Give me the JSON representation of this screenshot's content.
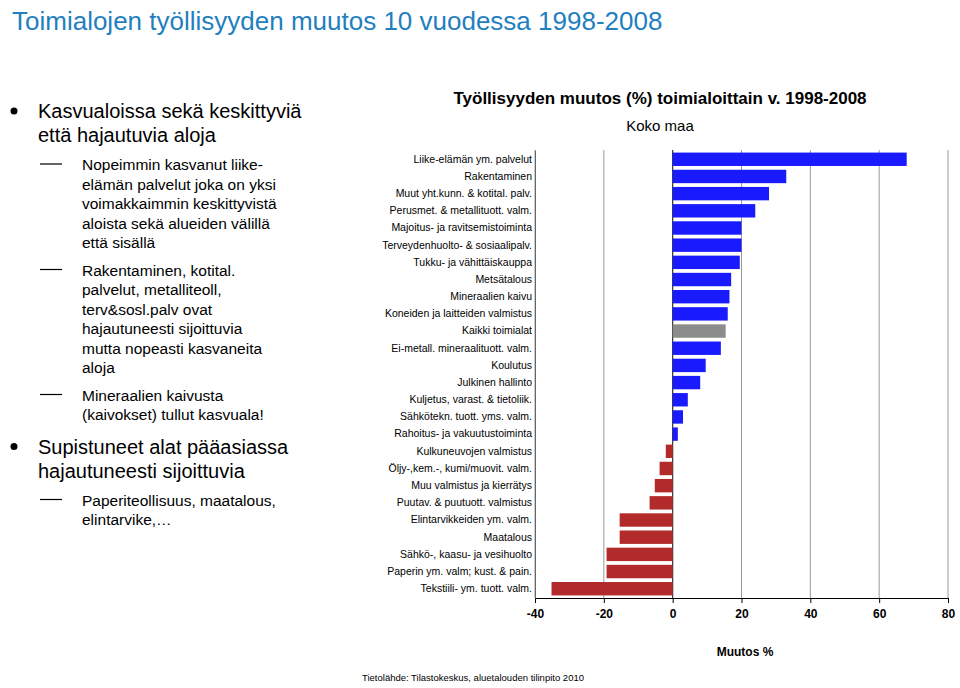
{
  "slide": {
    "title": "Toimialojen työllisyyden muutos 10 vuodessa 1998-2008",
    "bullets": [
      {
        "lines": [
          "Kasvualoissa sekä keskittyviä",
          "että hajautuvia aloja"
        ],
        "sub": [
          {
            "lines": [
              "Nopeimmin kasvanut liike-",
              "elämän palvelut joka on yksi",
              "voimakkaimmin keskittyvistä",
              "aloista sekä alueiden välillä",
              "että sisällä"
            ]
          },
          {
            "lines": [
              "Rakentaminen, kotital.",
              "palvelut, metalliteoll,",
              "terv&sosl.palv ovat",
              "hajautuneesti sijoittuvia",
              "mutta nopeasti kasvaneita",
              "aloja"
            ]
          },
          {
            "lines": [
              "Mineraalien kaivusta",
              "(kaivokset) tullut kasvuala!"
            ]
          }
        ]
      },
      {
        "lines": [
          "Supistuneet alat pääasiassa",
          "hajautuneesti sijoittuvia"
        ],
        "sub": [
          {
            "lines": [
              "Paperiteollisuus, maatalous,",
              "elintarvike,…"
            ]
          }
        ]
      }
    ]
  },
  "chart_data": {
    "type": "bar",
    "orientation": "horizontal",
    "title": "Työllisyyden muutos (%) toimialoittain v. 1998-2008",
    "subtitle": "Koko maa",
    "x_label": "Muutos %",
    "annotations": [
      "Tietolähde: Tilastokeskus, aluetalouden tilinpito 2010"
    ],
    "categories": [
      "Liike-elämän ym. palvelut",
      "Rakentaminen",
      "Muut yht.kunn. & kotital. palv.",
      "Perusmet. & metallituott. valm.",
      "Majoitus- ja ravitsemistoiminta",
      "Terveydenhuolto- & sosiaalipalv.",
      "Tukku- ja vähittäiskauppa",
      "Metsätalous",
      "Mineraalien kaivu",
      "Koneiden ja laitteiden valmistus",
      "Kaikki toimialat",
      "Ei-metall. mineraalituott. valm.",
      "Koulutus",
      "Julkinen hallinto",
      "Kuljetus, varast. & tietoliik.",
      "Sähkötekn. tuott. yms. valm.",
      "Rahoitus- ja vakuutustoiminta",
      "Kulkuneuvojen valmistus",
      "Öljy-,kem.-, kumi/muovit. valm.",
      "Muu valmistus ja kierrätys",
      "Puutav. & puutuott. valmistus",
      "Elintarvikkeiden ym. valm.",
      "Maatalous",
      "Sähkö-, kaasu- ja vesihuolto",
      "Paperin ym. valm; kust. & pain.",
      "Tekstiili- ym. tuott. valm."
    ],
    "values": [
      68,
      33,
      28,
      24,
      20,
      20,
      19.5,
      17,
      16.5,
      16,
      15.4,
      14,
      9.6,
      8,
      4.4,
      3,
      1.5,
      -2,
      -3.8,
      -5.2,
      -6.7,
      -15.4,
      -15.4,
      -19.2,
      -19.2,
      -35.2
    ],
    "colors": [
      "#1a1aff",
      "#1a1aff",
      "#1a1aff",
      "#1a1aff",
      "#1a1aff",
      "#1a1aff",
      "#1a1aff",
      "#1a1aff",
      "#1a1aff",
      "#1a1aff",
      "#8c8c8c",
      "#1a1aff",
      "#1a1aff",
      "#1a1aff",
      "#1a1aff",
      "#1a1aff",
      "#1a1aff",
      "#b22a2a",
      "#b22a2a",
      "#b22a2a",
      "#b22a2a",
      "#b22a2a",
      "#b22a2a",
      "#b22a2a",
      "#b22a2a",
      "#b22a2a"
    ],
    "xlim": [
      -40,
      80
    ],
    "xticks": [
      -40,
      -20,
      0,
      20,
      40,
      60,
      80
    ],
    "grid": true
  }
}
